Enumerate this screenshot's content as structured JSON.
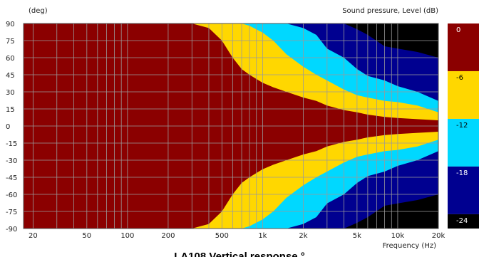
{
  "chart_data": {
    "type": "heatmap",
    "title": "LA108 Vertical response °",
    "ylabel": "(deg)",
    "xlabel": "Frequency  (Hz)",
    "colorbar_label": "Sound pressure, Level  (dB)",
    "x_scale": "log",
    "xlim": [
      17,
      20000
    ],
    "ylim": [
      -90,
      90
    ],
    "x_ticks": [
      {
        "value": 20,
        "label": "20"
      },
      {
        "value": 50,
        "label": "50"
      },
      {
        "value": 100,
        "label": "100"
      },
      {
        "value": 200,
        "label": "200"
      },
      {
        "value": 500,
        "label": "500"
      },
      {
        "value": 1000,
        "label": "1k"
      },
      {
        "value": 2000,
        "label": "2k"
      },
      {
        "value": 5000,
        "label": "5k"
      },
      {
        "value": 10000,
        "label": "10k"
      },
      {
        "value": 20000,
        "label": "20k"
      }
    ],
    "y_ticks": [
      90,
      75,
      60,
      45,
      30,
      15,
      0,
      -15,
      -30,
      -45,
      -60,
      -75,
      -90
    ],
    "colorbar": {
      "ticks": [
        "0",
        "-6",
        "-12",
        "-18",
        "-24"
      ],
      "levels": [
        {
          "range": "0 to -6 dB",
          "color": "#8b0000"
        },
        {
          "range": "-6 to -12 dB",
          "color": "#ffd700"
        },
        {
          "range": "-12 to -18 dB",
          "color": "#00d8ff"
        },
        {
          "range": "-18 to -24 dB",
          "color": "#000090"
        },
        {
          "range": "below -24 dB",
          "color": "#000000"
        }
      ]
    },
    "contours": {
      "freq": [
        17,
        300,
        400,
        500,
        600,
        700,
        800,
        1000,
        1200,
        1500,
        2000,
        2500,
        3000,
        4000,
        5000,
        6000,
        8000,
        10000,
        14000,
        20000
      ],
      "minus6_deg": [
        90,
        90,
        86,
        75,
        60,
        50,
        45,
        38,
        34,
        30,
        25,
        22,
        18,
        14,
        12,
        10,
        8,
        7,
        6,
        5
      ],
      "minus12_deg": [
        90,
        90,
        90,
        90,
        90,
        90,
        88,
        82,
        75,
        63,
        52,
        45,
        40,
        32,
        27,
        25,
        22,
        21,
        18,
        12
      ],
      "minus18_deg": [
        90,
        90,
        90,
        90,
        90,
        90,
        90,
        90,
        90,
        90,
        86,
        80,
        68,
        60,
        50,
        44,
        40,
        35,
        30,
        22
      ],
      "minus24_deg": [
        90,
        90,
        90,
        90,
        90,
        90,
        90,
        90,
        90,
        90,
        90,
        90,
        90,
        90,
        85,
        80,
        70,
        68,
        65,
        60
      ]
    }
  }
}
